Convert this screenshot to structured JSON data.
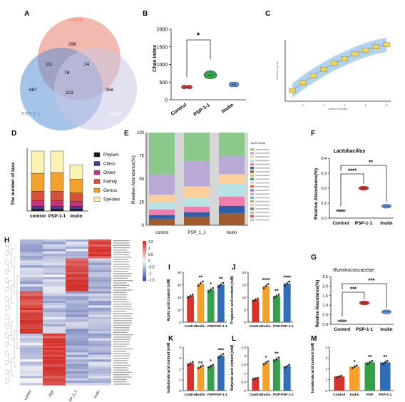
{
  "panels": {
    "A": "A",
    "B": "B",
    "C": "C",
    "D": "D",
    "E": "E",
    "F": "F",
    "G": "G",
    "H": "H",
    "I": "I",
    "J": "J",
    "K": "K",
    "L": "L",
    "M": "M"
  },
  "colors": {
    "control": "#e8826e",
    "psp11": "#5b8fd4",
    "inulin": "#c9c8e6",
    "bar_control": "#d9322c",
    "bar_inulin": "#f5a02b",
    "bar_psp": "#35a04a",
    "bar_psp11": "#2f6dbb",
    "heat_high": "#d7302a",
    "heat_low": "#3a4fa0",
    "heat_mid": "#f4f4f8"
  },
  "chart_data": [
    {
      "panel": "A",
      "type": "venn",
      "sets": [
        "control",
        "PSP-1-1",
        "Inulin"
      ],
      "regions": {
        "control_only": 296,
        "psp_only": 687,
        "inulin_only": 358,
        "control_psp": 111,
        "control_inulin": 24,
        "psp_inulin": 103,
        "all": 78
      }
    },
    {
      "panel": "B",
      "type": "violin",
      "ylabel": "Chao index",
      "ylim": [
        0,
        2000
      ],
      "yticks": [
        0,
        500,
        1000,
        1500,
        2000
      ],
      "categories": [
        "Control",
        "PSP-1-1",
        "Inulin"
      ],
      "values": [
        360,
        700,
        430
      ],
      "significance": "*"
    },
    {
      "panel": "C",
      "type": "line",
      "xticks": [
        "2",
        "4",
        "6",
        "8",
        "10"
      ],
      "ylabel": "number of species",
      "xlabel": "number of samples",
      "x": [
        1,
        2,
        3,
        4,
        5,
        6,
        7,
        8,
        9,
        10
      ],
      "values": [
        900,
        1050,
        1180,
        1300,
        1410,
        1500,
        1590,
        1660,
        1720,
        1760
      ]
    },
    {
      "panel": "D",
      "type": "bar",
      "ylabel": "The number of taxa",
      "categories": [
        "control",
        "PSP-1-1",
        "inulin"
      ],
      "series": [
        {
          "name": "Phylum",
          "values": [
            3,
            3,
            3
          ]
        },
        {
          "name": "Class",
          "values": [
            5,
            5,
            5
          ]
        },
        {
          "name": "Order",
          "values": [
            9,
            9,
            8
          ]
        },
        {
          "name": "Family",
          "values": [
            16,
            16,
            14
          ]
        },
        {
          "name": "Genus",
          "values": [
            30,
            31,
            23
          ]
        },
        {
          "name": "Species",
          "values": [
            37,
            36,
            24
          ]
        }
      ]
    },
    {
      "panel": "E",
      "type": "bar",
      "ylabel": "Relative Abundance(%)",
      "ylim": [
        0,
        100
      ],
      "yticks": [
        0,
        25,
        50,
        75,
        100
      ],
      "categories": [
        "control",
        "PSP_1_1",
        "Inulin"
      ],
      "legend_title": "Top 20 Family",
      "series": [
        {
          "values": [
            45,
            30,
            25
          ]
        },
        {
          "values": [
            22,
            28,
            20
          ]
        },
        {
          "values": [
            8,
            12,
            10
          ]
        },
        {
          "values": [
            8,
            10,
            14
          ]
        },
        {
          "values": [
            6,
            6,
            10
          ]
        },
        {
          "values": [
            4,
            5,
            8
          ]
        },
        {
          "values": [
            7,
            9,
            13
          ]
        }
      ]
    },
    {
      "panel": "F",
      "type": "scatter",
      "title": "Lactobacillus",
      "ylabel": "Relative Abundance(%)",
      "ylim": [
        0,
        0.4
      ],
      "yticks": [
        0.0,
        0.1,
        0.2,
        0.3,
        0.4
      ],
      "categories": [
        "Control",
        "PSP-1-1",
        "Inulin"
      ],
      "values": [
        0.05,
        0.2,
        0.08
      ],
      "significance": [
        "****",
        "**"
      ]
    },
    {
      "panel": "G",
      "type": "scatter",
      "title": "Ruminococcaceae",
      "ylabel": "Relative Abundance(%)",
      "ylim": [
        0,
        2.5
      ],
      "yticks": [
        0.0,
        0.5,
        1.0,
        1.5,
        2.0,
        2.5
      ],
      "categories": [
        "Control",
        "PSP-1-1",
        "Inulin"
      ],
      "values": [
        0.18,
        1.12,
        0.65
      ],
      "significance": [
        "***",
        "***"
      ]
    },
    {
      "panel": "I",
      "type": "bar",
      "ylabel": "Acetic acid content (mM)",
      "ylim": [
        0,
        40
      ],
      "yticks": [
        0,
        10,
        20,
        30,
        40
      ],
      "categories": [
        "Control",
        "Inulin",
        "PSP",
        "PSP-1-1"
      ],
      "values": [
        21,
        31,
        26,
        30
      ],
      "significance": [
        "",
        "**",
        "*",
        "**"
      ]
    },
    {
      "panel": "J",
      "type": "bar",
      "ylabel": "Propionic acid content (mM)",
      "ylim": [
        0,
        20
      ],
      "yticks": [
        0,
        5,
        10,
        15,
        20
      ],
      "categories": [
        "Control",
        "Inulin",
        "PSP",
        "PSP-1-1"
      ],
      "values": [
        9,
        14.5,
        10.5,
        15.5
      ],
      "significance": [
        "",
        "****",
        "**",
        "****"
      ]
    },
    {
      "panel": "K",
      "type": "bar",
      "ylabel": "Isobutyrate acid content (mM)",
      "ylim": [
        0,
        4
      ],
      "yticks": [
        0,
        1,
        2,
        3,
        4
      ],
      "categories": [
        "Control",
        "Inulin",
        "PSP",
        "PSP-1-1"
      ],
      "values": [
        2.5,
        2.2,
        2.25,
        3.2
      ],
      "significance": [
        "",
        "ns",
        "*",
        "***"
      ]
    },
    {
      "panel": "L",
      "type": "bar",
      "ylabel": "Butyrate acid content (mM)",
      "ylim": [
        0,
        2.5
      ],
      "yticks": [
        0.0,
        0.5,
        1.0,
        1.5,
        2.0,
        2.5
      ],
      "categories": [
        "Control",
        "Inulin",
        "PSP",
        "PSP-1-1"
      ],
      "values": [
        0.7,
        1.6,
        1.8,
        1.4
      ],
      "significance": [
        "",
        "*",
        "**",
        ""
      ]
    },
    {
      "panel": "M",
      "type": "bar",
      "ylabel": "Isovalerate acid content (mM)",
      "ylim": [
        0,
        4
      ],
      "yticks": [
        0,
        1,
        2,
        3,
        4
      ],
      "categories": [
        "Control",
        "Inulin",
        "PSP",
        "PSP-1-1"
      ],
      "values": [
        1.3,
        2.2,
        2.6,
        2.6
      ],
      "significance": [
        "",
        "*",
        "**",
        "**"
      ]
    },
    {
      "panel": "H",
      "type": "heatmap",
      "columns": [
        "control",
        "PSP",
        "SP_1_1",
        "Inulin"
      ],
      "scale_ticks": [
        "1.5",
        "1",
        "0.5",
        "0",
        "-0.5",
        "-1",
        "-1.5"
      ]
    }
  ]
}
